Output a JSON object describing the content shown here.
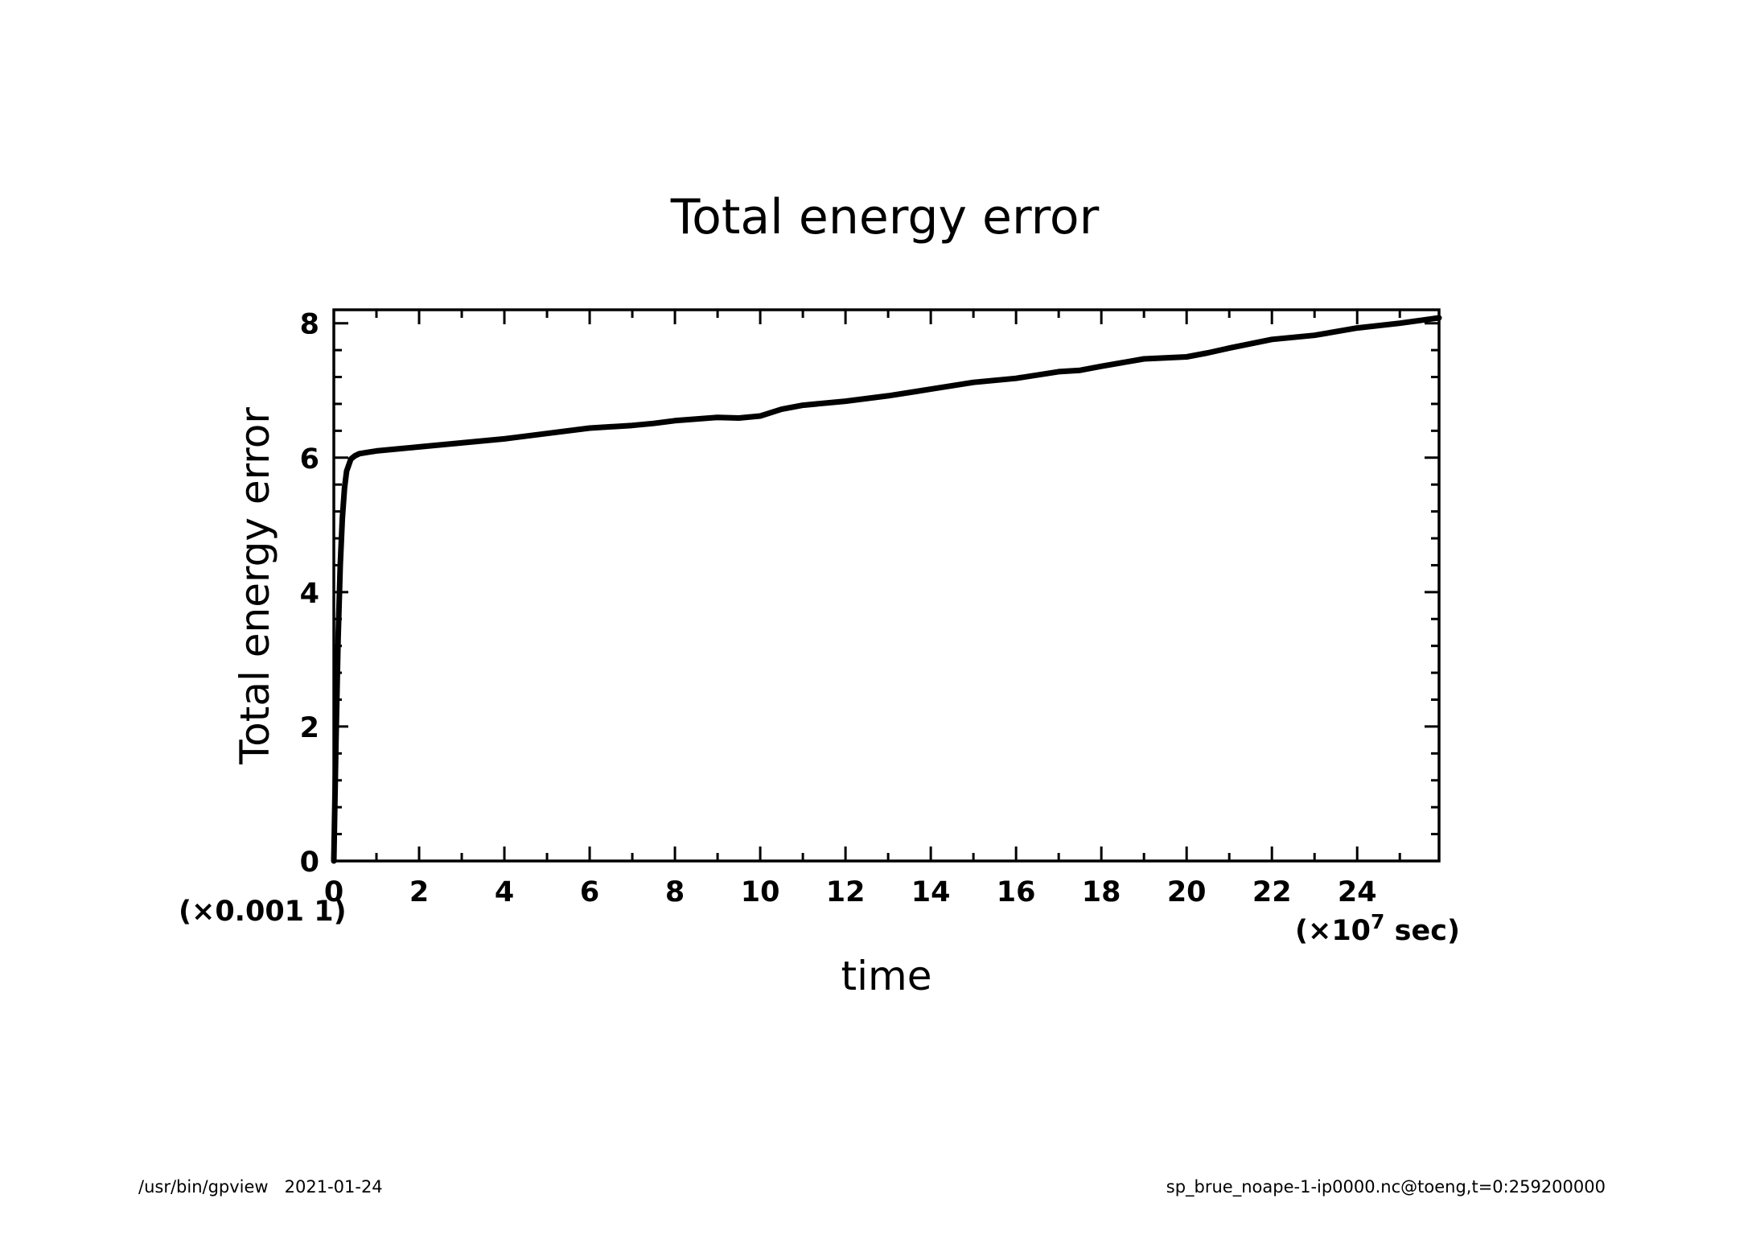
{
  "chart_data": {
    "type": "line",
    "title": "Total energy error",
    "xlabel": "time",
    "ylabel": "Total energy error",
    "x_unit_prefix": "(×10",
    "x_unit_exponent": "7",
    "x_unit_suffix": " sec)",
    "y_unit": "(×0.001 1)",
    "xlim": [
      0,
      25.92
    ],
    "ylim": [
      0,
      8.2
    ],
    "xticks": [
      0,
      2,
      4,
      6,
      8,
      10,
      12,
      14,
      16,
      18,
      20,
      22,
      24
    ],
    "xtick_labels": [
      "0",
      "2",
      "4",
      "6",
      "8",
      "10",
      "12",
      "14",
      "16",
      "18",
      "20",
      "22",
      "24"
    ],
    "yticks": [
      0,
      2,
      4,
      6,
      8
    ],
    "ytick_labels": [
      "0",
      "2",
      "4",
      "6",
      "8"
    ],
    "grid": false,
    "legend": "none",
    "series": [
      {
        "x": [
          0,
          0.05,
          0.1,
          0.15,
          0.2,
          0.25,
          0.3,
          0.4,
          0.5,
          0.6,
          0.8,
          1,
          1.5,
          2,
          3,
          4,
          5,
          6,
          7,
          7.5,
          8,
          9,
          9.5,
          10,
          10.5,
          11,
          12,
          13,
          14,
          15,
          16,
          17,
          17.5,
          18,
          19,
          20,
          20.5,
          21,
          22,
          23,
          24,
          25,
          25.92
        ],
        "y": [
          0,
          1.8,
          3.3,
          4.4,
          5.1,
          5.55,
          5.8,
          5.98,
          6.03,
          6.06,
          6.08,
          6.1,
          6.13,
          6.16,
          6.22,
          6.28,
          6.36,
          6.44,
          6.48,
          6.51,
          6.55,
          6.6,
          6.59,
          6.62,
          6.72,
          6.78,
          6.84,
          6.92,
          7.02,
          7.12,
          7.18,
          7.28,
          7.3,
          7.36,
          7.47,
          7.5,
          7.56,
          7.63,
          7.76,
          7.82,
          7.93,
          8.0,
          8.08
        ]
      }
    ]
  },
  "footer": {
    "left": "/usr/bin/gpview   2021-01-24",
    "right": "sp_brue_noape-1-ip0000.nc@toeng,t=0:259200000"
  }
}
